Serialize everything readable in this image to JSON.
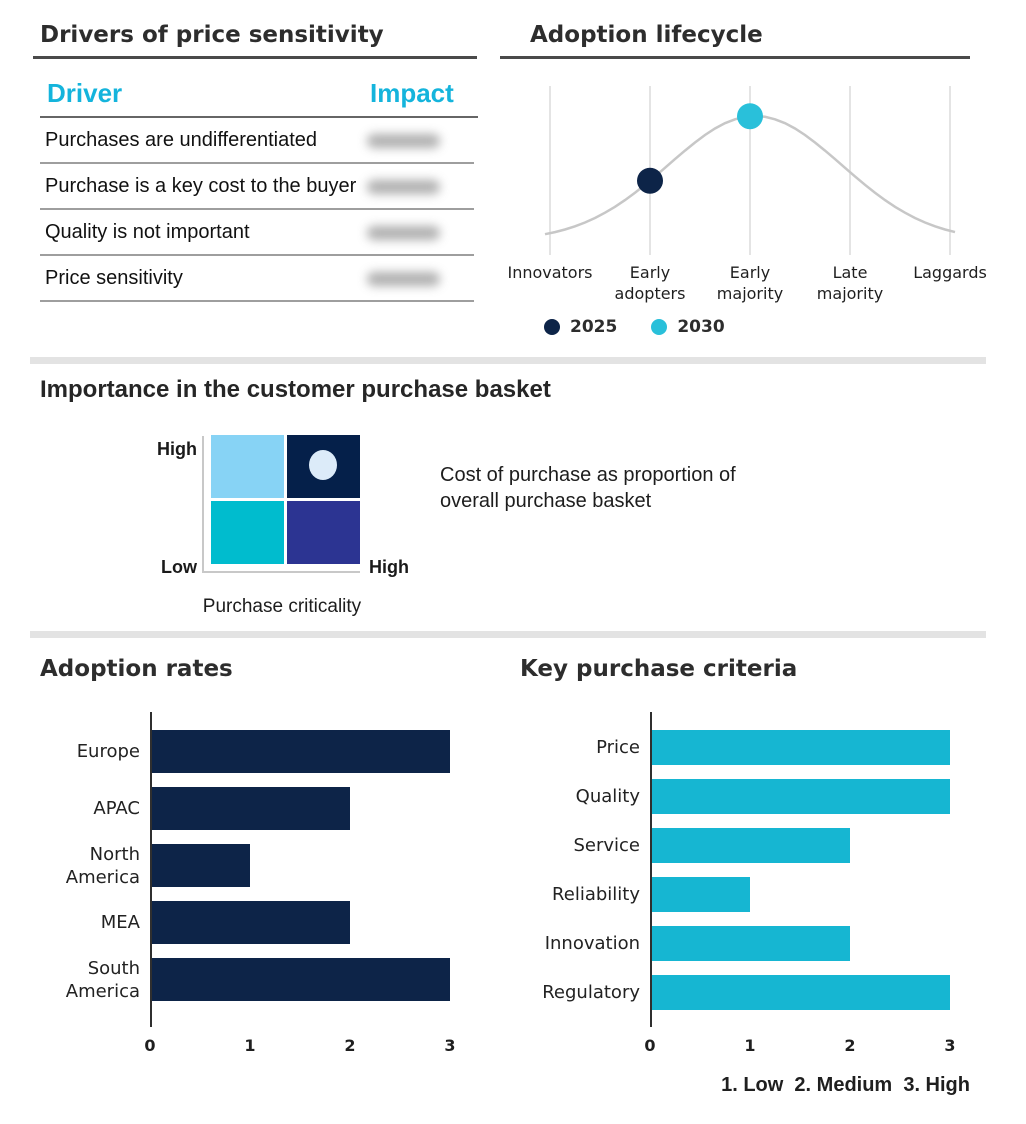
{
  "colors": {
    "navy": "#0d2448",
    "cyan_bar": "#16b6d2",
    "cyan_dot": "#29c0da",
    "accent_cyan": "#14b4dc",
    "light_blue": "#87d3f5",
    "quad_navy": "#05204a",
    "indigo": "#2c3492",
    "marker_white": "#dcebf9",
    "curve_gray": "#c7c7c7",
    "grid_gray": "#dcdcdc"
  },
  "price_table": {
    "title": "Drivers of price sensitivity",
    "columns": {
      "driver": "Driver",
      "impact": "Impact"
    },
    "rows": [
      {
        "driver": "Purchases are undifferentiated",
        "impact": "",
        "impact_blurred": true
      },
      {
        "driver": "Purchase is a key cost to the buyer",
        "impact": "",
        "impact_blurred": true
      },
      {
        "driver": "Quality is not important",
        "impact": "",
        "impact_blurred": true
      },
      {
        "driver": "Price sensitivity",
        "impact": "",
        "impact_blurred": true
      }
    ]
  },
  "lifecycle": {
    "title": "Adoption lifecycle",
    "categories": [
      "Innovators",
      "Early\nadopters",
      "Early\nmajority",
      "Late\nmajority",
      "Laggards"
    ],
    "points": [
      {
        "label": "2025",
        "category_index": 1,
        "color_key": "navy"
      },
      {
        "label": "2030",
        "category_index": 2,
        "color_key": "cyan_dot"
      }
    ]
  },
  "matrix": {
    "title": "Importance in the customer purchase basket",
    "y_high": "High",
    "y_low": "Low",
    "x_high": "High",
    "xlabel": "Purchase criticality",
    "annotation": "Cost of purchase as proportion of\noverall purchase basket",
    "quadrants": {
      "top_left": "light_blue",
      "top_right": "quad_navy",
      "bottom_left": "cyan_quad",
      "bottom_right": "indigo"
    },
    "cyan_quad": "#00bcce",
    "marker_quadrant": "top_right"
  },
  "adoption_rates": {
    "title": "Adoption rates",
    "categories": [
      "Europe",
      "APAC",
      "North\nAmerica",
      "MEA",
      "South\nAmerica"
    ],
    "values": [
      3,
      2,
      1,
      2,
      3
    ],
    "xticks": [
      0,
      1,
      2,
      3
    ]
  },
  "key_criteria": {
    "title": "Key purchase criteria",
    "categories": [
      "Price",
      "Quality",
      "Service",
      "Reliability",
      "Innovation",
      "Regulatory"
    ],
    "values": [
      3,
      3,
      2,
      1,
      2,
      3
    ],
    "xticks": [
      0,
      1,
      2,
      3
    ],
    "scale_note": "1. Low  2. Medium  3. High"
  },
  "chart_data": [
    {
      "type": "table",
      "title": "Drivers of price sensitivity",
      "columns": [
        "Driver",
        "Impact"
      ],
      "rows": [
        [
          "Purchases are undifferentiated",
          "(blurred)"
        ],
        [
          "Purchase is a key cost to the buyer",
          "(blurred)"
        ],
        [
          "Quality is not important",
          "(blurred)"
        ],
        [
          "Price sensitivity",
          "(blurred)"
        ]
      ]
    },
    {
      "type": "line",
      "title": "Adoption lifecycle",
      "categories": [
        "Innovators",
        "Early adopters",
        "Early majority",
        "Late majority",
        "Laggards"
      ],
      "curve": "bell-shaped adoption curve, gray, unlabeled y-axis",
      "points": [
        {
          "name": "2025",
          "x": "Early adopters"
        },
        {
          "name": "2030",
          "x": "Early majority"
        }
      ],
      "legend_position": "bottom"
    },
    {
      "type": "heatmap",
      "title": "Importance in the customer purchase basket",
      "xlabel": "Purchase criticality",
      "x_range": [
        "Low",
        "High"
      ],
      "y_range": [
        "Low",
        "High"
      ],
      "marker": "white dot in high-criticality / high-importance quadrant",
      "annotation": "Cost of purchase as proportion of overall purchase basket"
    },
    {
      "type": "bar",
      "title": "Adoption rates",
      "orientation": "horizontal",
      "categories": [
        "Europe",
        "APAC",
        "North America",
        "MEA",
        "South America"
      ],
      "values": [
        3,
        2,
        1,
        2,
        3
      ],
      "xlim": [
        0,
        3
      ],
      "xticks": [
        0,
        1,
        2,
        3
      ]
    },
    {
      "type": "bar",
      "title": "Key purchase criteria",
      "orientation": "horizontal",
      "categories": [
        "Price",
        "Quality",
        "Service",
        "Reliability",
        "Innovation",
        "Regulatory"
      ],
      "values": [
        3,
        3,
        2,
        1,
        2,
        3
      ],
      "xlim": [
        0,
        3
      ],
      "xticks": [
        0,
        1,
        2,
        3
      ],
      "note": "1. Low  2. Medium  3. High"
    }
  ]
}
